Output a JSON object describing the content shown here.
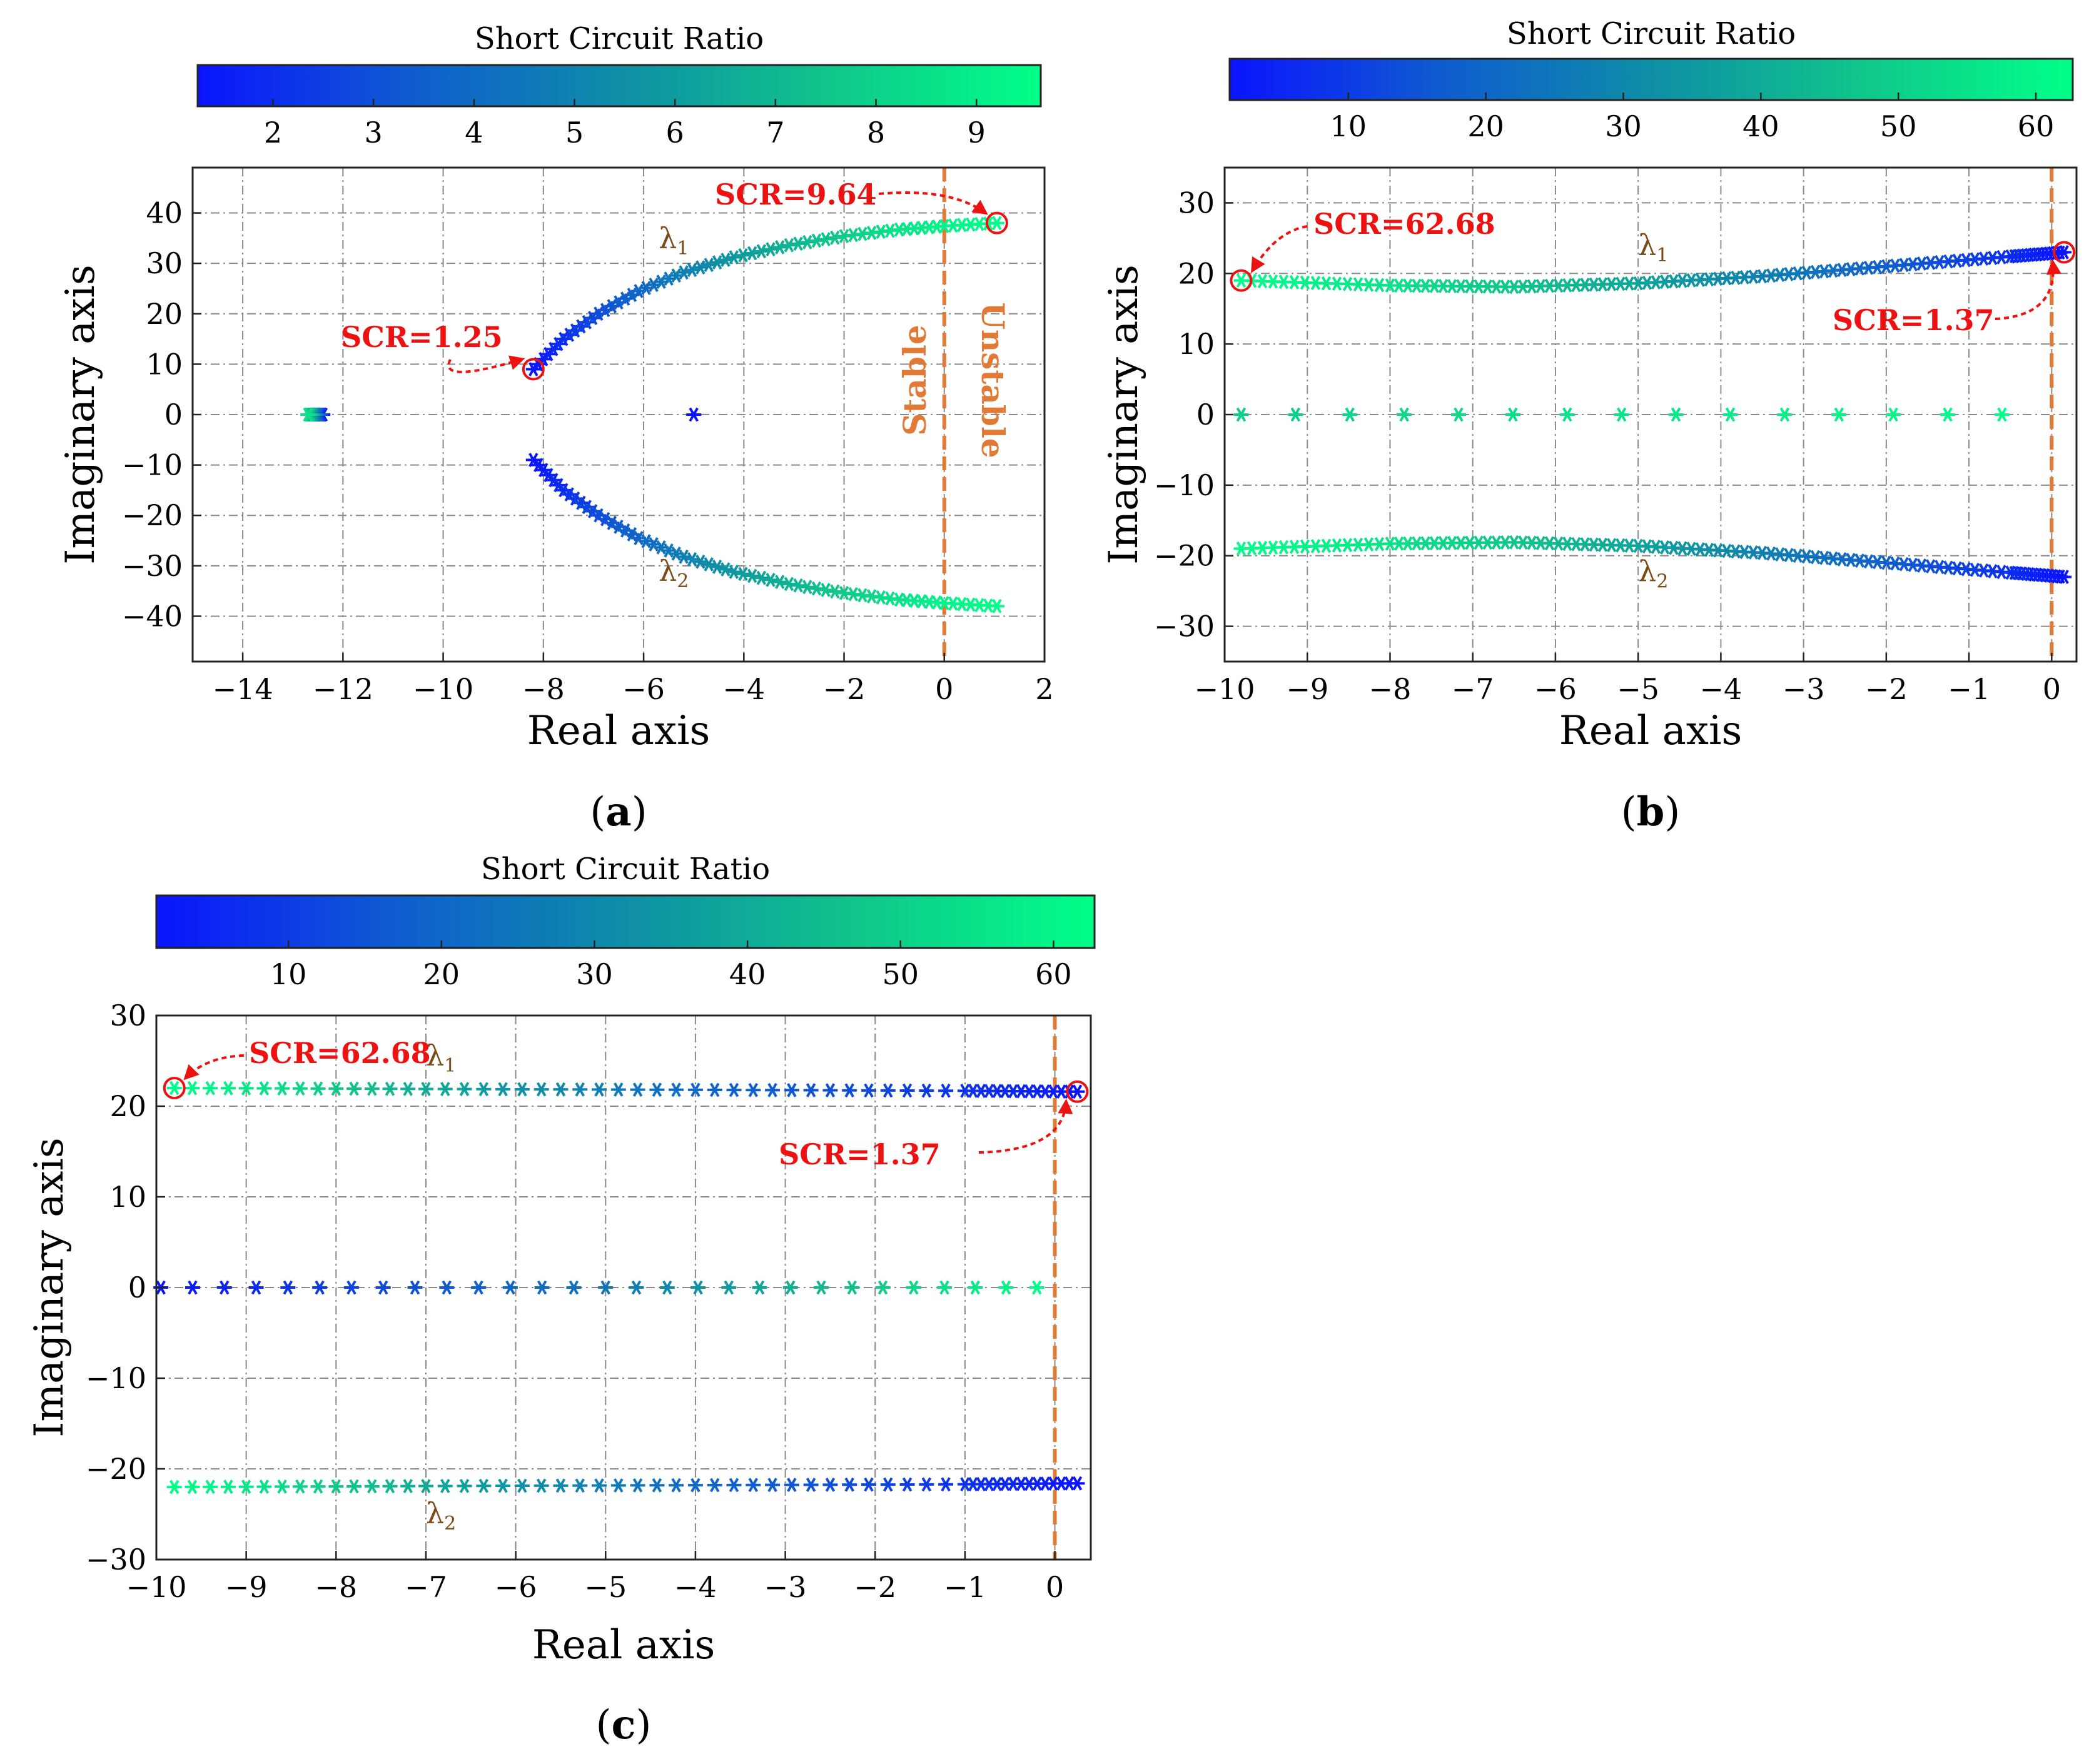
{
  "colorbar_gradient": [
    "#0a14ff",
    "#0f5bd0",
    "#0e8ea6",
    "#10c68a",
    "#00ff88"
  ],
  "annotation_color": "#ee1111",
  "boundary_color": "#e07a36",
  "chart_data": [
    {
      "id": "a",
      "type": "scatter",
      "caption": "a",
      "colorbar": {
        "title": "Short Circuit Ratio",
        "range": [
          1.25,
          9.64
        ],
        "ticks": [
          2,
          3,
          4,
          5,
          6,
          7,
          8,
          9
        ]
      },
      "xlabel": "Real axis",
      "ylabel": "Imaginary axis",
      "xlim": [
        -15,
        2
      ],
      "ylim": [
        -49,
        49
      ],
      "xticks": [
        -14,
        -12,
        -10,
        -8,
        -6,
        -4,
        -2,
        0,
        2
      ],
      "yticks": [
        -40,
        -30,
        -20,
        -10,
        0,
        10,
        20,
        30,
        40
      ],
      "series": [
        {
          "name": "λ1",
          "label": "λ",
          "sub": "1",
          "label_at": [
            -5.7,
            33
          ],
          "points": [
            {
              "x": -8.2,
              "y": 9.0,
              "scr": 1.25
            },
            {
              "x": -7.6,
              "y": 15.0,
              "scr": 2.0
            },
            {
              "x": -6.9,
              "y": 20.0,
              "scr": 2.9
            },
            {
              "x": -6.1,
              "y": 24.5,
              "scr": 3.8
            },
            {
              "x": -5.2,
              "y": 28.2,
              "scr": 4.8
            },
            {
              "x": -4.2,
              "y": 31.2,
              "scr": 5.8
            },
            {
              "x": -3.1,
              "y": 33.6,
              "scr": 6.8
            },
            {
              "x": -2.0,
              "y": 35.4,
              "scr": 7.7
            },
            {
              "x": -0.9,
              "y": 36.7,
              "scr": 8.6
            },
            {
              "x": 0.0,
              "y": 37.4,
              "scr": 9.2
            },
            {
              "x": 1.05,
              "y": 38.0,
              "scr": 9.64
            }
          ]
        },
        {
          "name": "λ2",
          "label": "λ",
          "sub": "2",
          "label_at": [
            -5.7,
            -33
          ],
          "points": [
            {
              "x": -8.2,
              "y": -9.0,
              "scr": 1.25
            },
            {
              "x": -7.6,
              "y": -15.0,
              "scr": 2.0
            },
            {
              "x": -6.9,
              "y": -20.0,
              "scr": 2.9
            },
            {
              "x": -6.1,
              "y": -24.5,
              "scr": 3.8
            },
            {
              "x": -5.2,
              "y": -28.2,
              "scr": 4.8
            },
            {
              "x": -4.2,
              "y": -31.2,
              "scr": 5.8
            },
            {
              "x": -3.1,
              "y": -33.6,
              "scr": 6.8
            },
            {
              "x": -2.0,
              "y": -35.4,
              "scr": 7.7
            },
            {
              "x": -0.9,
              "y": -36.7,
              "scr": 8.6
            },
            {
              "x": 0.0,
              "y": -37.4,
              "scr": 9.2
            },
            {
              "x": 1.05,
              "y": -38.0,
              "scr": 9.64
            }
          ]
        },
        {
          "name": "real-pole-1",
          "points": [
            {
              "x": -12.4,
              "y": 0,
              "scr": 1.25
            },
            {
              "x": -12.5,
              "y": 0,
              "scr": 3.5
            },
            {
              "x": -12.6,
              "y": 0,
              "scr": 6.0
            },
            {
              "x": -12.7,
              "y": 0,
              "scr": 8.5
            }
          ]
        },
        {
          "name": "real-pole-2",
          "points": [
            {
              "x": -5.0,
              "y": 0,
              "scr": 1.25
            }
          ]
        }
      ],
      "annotations": [
        {
          "text": "SCR=1.25",
          "target": [
            -8.2,
            9.0
          ]
        },
        {
          "text": "SCR=9.64",
          "target": [
            1.05,
            38.0
          ]
        }
      ],
      "boundary": {
        "x": 0,
        "left_label": "Stable",
        "right_label": "Unstable"
      }
    },
    {
      "id": "b",
      "type": "scatter",
      "caption": "b",
      "colorbar": {
        "title": "Short Circuit Ratio",
        "range": [
          1.37,
          62.68
        ],
        "ticks": [
          10,
          20,
          30,
          40,
          50,
          60
        ]
      },
      "xlabel": "Real axis",
      "ylabel": "Imaginary axis",
      "xlim": [
        -10,
        0.3
      ],
      "ylim": [
        -35,
        35
      ],
      "xticks": [
        -10,
        -9,
        -8,
        -7,
        -6,
        -5,
        -4,
        -3,
        -2,
        -1,
        0
      ],
      "yticks": [
        -30,
        -20,
        -10,
        0,
        10,
        20,
        30
      ],
      "series": [
        {
          "name": "λ1",
          "label": "λ",
          "sub": "1",
          "label_at": [
            -5.0,
            22.6
          ],
          "points": [
            {
              "x": -9.8,
              "y": 19.0,
              "scr": 62.68
            },
            {
              "x": -8.0,
              "y": 18.3,
              "scr": 55
            },
            {
              "x": -6.5,
              "y": 18.1,
              "scr": 47
            },
            {
              "x": -5.0,
              "y": 18.6,
              "scr": 38
            },
            {
              "x": -3.5,
              "y": 19.6,
              "scr": 28
            },
            {
              "x": -2.0,
              "y": 21.0,
              "scr": 18
            },
            {
              "x": -0.5,
              "y": 22.4,
              "scr": 7
            },
            {
              "x": 0.15,
              "y": 23.0,
              "scr": 1.37
            }
          ]
        },
        {
          "name": "λ2",
          "label": "λ",
          "sub": "2",
          "label_at": [
            -5.0,
            -23.6
          ],
          "points": [
            {
              "x": -9.8,
              "y": -19.0,
              "scr": 62.68
            },
            {
              "x": -8.0,
              "y": -18.3,
              "scr": 55
            },
            {
              "x": -6.5,
              "y": -18.1,
              "scr": 47
            },
            {
              "x": -5.0,
              "y": -18.6,
              "scr": 38
            },
            {
              "x": -3.5,
              "y": -19.6,
              "scr": 28
            },
            {
              "x": -2.0,
              "y": -21.0,
              "scr": 18
            },
            {
              "x": -0.5,
              "y": -22.4,
              "scr": 7
            },
            {
              "x": 0.15,
              "y": -23.0,
              "scr": 1.37
            }
          ]
        },
        {
          "name": "real-axis",
          "points": [
            {
              "x": -9.8,
              "y": 0,
              "scr": 50
            },
            {
              "x": -0.6,
              "y": 0,
              "scr": 62.68
            }
          ]
        }
      ],
      "annotations": [
        {
          "text": "SCR=62.68",
          "target": [
            -9.8,
            19.0
          ]
        },
        {
          "text": "SCR=1.37",
          "target": [
            0.15,
            23.0
          ]
        }
      ],
      "boundary": {
        "x": 0
      }
    },
    {
      "id": "c",
      "type": "scatter",
      "caption": "c",
      "colorbar": {
        "title": "Short Circuit Ratio",
        "range": [
          1.37,
          62.68
        ],
        "ticks": [
          10,
          20,
          30,
          40,
          50,
          60
        ]
      },
      "xlabel": "Real axis",
      "ylabel": "Imaginary axis",
      "xlim": [
        -10,
        0.4
      ],
      "ylim": [
        -30,
        30
      ],
      "xticks": [
        -10,
        -9,
        -8,
        -7,
        -6,
        -5,
        -4,
        -3,
        -2,
        -1,
        0
      ],
      "yticks": [
        -30,
        -20,
        -10,
        0,
        10,
        20,
        30
      ],
      "series": [
        {
          "name": "λ1",
          "label": "λ",
          "sub": "1",
          "label_at": [
            -7.0,
            24.5
          ],
          "points": [
            {
              "x": -9.8,
              "y": 22.0,
              "scr": 62.68
            },
            {
              "x": -7.0,
              "y": 21.9,
              "scr": 40
            },
            {
              "x": -4.0,
              "y": 21.8,
              "scr": 20
            },
            {
              "x": -1.0,
              "y": 21.7,
              "scr": 8
            },
            {
              "x": 0.25,
              "y": 21.6,
              "scr": 1.37
            }
          ]
        },
        {
          "name": "λ2",
          "label": "λ",
          "sub": "2",
          "label_at": [
            -7.0,
            -26.0
          ],
          "points": [
            {
              "x": -9.8,
              "y": -22.0,
              "scr": 62.68
            },
            {
              "x": -7.0,
              "y": -21.9,
              "scr": 40
            },
            {
              "x": -4.0,
              "y": -21.8,
              "scr": 20
            },
            {
              "x": -1.0,
              "y": -21.7,
              "scr": 8
            },
            {
              "x": 0.25,
              "y": -21.6,
              "scr": 1.37
            }
          ]
        },
        {
          "name": "real-axis",
          "points": [
            {
              "x": -9.95,
              "y": 0,
              "scr": 1.37
            },
            {
              "x": -5.0,
              "y": 0,
              "scr": 25
            },
            {
              "x": -0.2,
              "y": 0,
              "scr": 62.68
            }
          ]
        }
      ],
      "annotations": [
        {
          "text": "SCR=62.68",
          "target": [
            -9.8,
            22.0
          ]
        },
        {
          "text": "SCR=1.37",
          "target": [
            0.25,
            21.6
          ]
        }
      ],
      "boundary": {
        "x": 0
      }
    }
  ]
}
